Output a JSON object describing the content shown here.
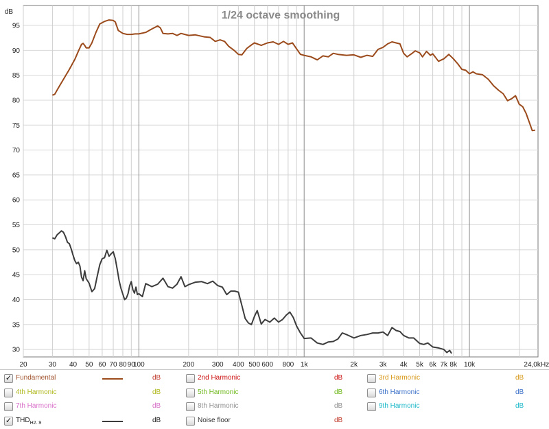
{
  "chart_data": {
    "type": "line",
    "title": "1/24 octave smoothing",
    "ylabel": "dB",
    "xunit": "Hz",
    "xscale": "log",
    "xlim": [
      20,
      26000
    ],
    "ylim": [
      28.5,
      99
    ],
    "grid": true,
    "yticks": [
      30,
      35,
      40,
      45,
      50,
      55,
      60,
      65,
      70,
      75,
      80,
      85,
      90,
      95
    ],
    "xticks": [
      {
        "v": 20,
        "label": "20"
      },
      {
        "v": 30,
        "label": "30"
      },
      {
        "v": 40,
        "label": "40"
      },
      {
        "v": 50,
        "label": "50"
      },
      {
        "v": 60,
        "label": "60"
      },
      {
        "v": 70,
        "label": "70"
      },
      {
        "v": 80,
        "label": "80"
      },
      {
        "v": 90,
        "label": "90"
      },
      {
        "v": 100,
        "label": "100"
      },
      {
        "v": 200,
        "label": "200"
      },
      {
        "v": 300,
        "label": "300"
      },
      {
        "v": 400,
        "label": "400"
      },
      {
        "v": 500,
        "label": "500"
      },
      {
        "v": 600,
        "label": "600"
      },
      {
        "v": 800,
        "label": "800"
      },
      {
        "v": 1000,
        "label": "1k"
      },
      {
        "v": 2000,
        "label": "2k"
      },
      {
        "v": 3000,
        "label": "3k"
      },
      {
        "v": 4000,
        "label": "4k"
      },
      {
        "v": 5000,
        "label": "5k"
      },
      {
        "v": 6000,
        "label": "6k"
      },
      {
        "v": 7000,
        "label": "7k"
      },
      {
        "v": 8000,
        "label": "8k"
      },
      {
        "v": 10000,
        "label": "10k"
      },
      {
        "v": 24000,
        "label": "24,0k"
      }
    ],
    "xgrid_minor": [
      20,
      30,
      40,
      50,
      60,
      70,
      80,
      90,
      200,
      300,
      400,
      500,
      600,
      700,
      800,
      900,
      2000,
      3000,
      4000,
      5000,
      6000,
      7000,
      8000,
      9000,
      20000
    ],
    "xgrid_major": [
      100,
      1000,
      10000
    ],
    "series": [
      {
        "name": "Fundamental",
        "color": "#9b4a1b",
        "points": [
          [
            30,
            81.0
          ],
          [
            31,
            81.2
          ],
          [
            33,
            82.8
          ],
          [
            35,
            84.2
          ],
          [
            38,
            86.2
          ],
          [
            41,
            88.2
          ],
          [
            43,
            89.8
          ],
          [
            45,
            91.2
          ],
          [
            46,
            91.4
          ],
          [
            47,
            91.0
          ],
          [
            48,
            90.5
          ],
          [
            50,
            90.5
          ],
          [
            52,
            91.5
          ],
          [
            55,
            93.6
          ],
          [
            58,
            95.3
          ],
          [
            62,
            95.8
          ],
          [
            66,
            96.1
          ],
          [
            70,
            96.0
          ],
          [
            72,
            95.7
          ],
          [
            75,
            94.0
          ],
          [
            80,
            93.4
          ],
          [
            85,
            93.2
          ],
          [
            90,
            93.2
          ],
          [
            95,
            93.3
          ],
          [
            100,
            93.3
          ],
          [
            110,
            93.6
          ],
          [
            120,
            94.3
          ],
          [
            130,
            94.9
          ],
          [
            135,
            94.5
          ],
          [
            140,
            93.4
          ],
          [
            150,
            93.3
          ],
          [
            160,
            93.4
          ],
          [
            170,
            93.0
          ],
          [
            180,
            93.4
          ],
          [
            200,
            93.0
          ],
          [
            220,
            93.1
          ],
          [
            250,
            92.7
          ],
          [
            270,
            92.6
          ],
          [
            290,
            91.8
          ],
          [
            310,
            92.1
          ],
          [
            330,
            91.8
          ],
          [
            350,
            90.8
          ],
          [
            380,
            89.9
          ],
          [
            400,
            89.2
          ],
          [
            420,
            89.1
          ],
          [
            450,
            90.4
          ],
          [
            480,
            91.1
          ],
          [
            500,
            91.5
          ],
          [
            550,
            91.0
          ],
          [
            600,
            91.5
          ],
          [
            650,
            91.7
          ],
          [
            700,
            91.2
          ],
          [
            750,
            91.8
          ],
          [
            800,
            91.2
          ],
          [
            850,
            91.5
          ],
          [
            900,
            90.3
          ],
          [
            950,
            89.2
          ],
          [
            1000,
            89.0
          ],
          [
            1100,
            88.7
          ],
          [
            1200,
            88.1
          ],
          [
            1300,
            88.9
          ],
          [
            1400,
            88.7
          ],
          [
            1500,
            89.4
          ],
          [
            1600,
            89.2
          ],
          [
            1800,
            89.0
          ],
          [
            2000,
            89.1
          ],
          [
            2200,
            88.6
          ],
          [
            2400,
            89.0
          ],
          [
            2600,
            88.8
          ],
          [
            2800,
            90.2
          ],
          [
            3000,
            90.6
          ],
          [
            3200,
            91.3
          ],
          [
            3400,
            91.7
          ],
          [
            3600,
            91.5
          ],
          [
            3800,
            91.3
          ],
          [
            4000,
            89.4
          ],
          [
            4200,
            88.7
          ],
          [
            4500,
            89.4
          ],
          [
            4700,
            89.9
          ],
          [
            5000,
            89.5
          ],
          [
            5200,
            88.7
          ],
          [
            5500,
            89.8
          ],
          [
            5800,
            89.0
          ],
          [
            6000,
            89.3
          ],
          [
            6500,
            87.8
          ],
          [
            7000,
            88.3
          ],
          [
            7500,
            89.2
          ],
          [
            8000,
            88.3
          ],
          [
            8500,
            87.3
          ],
          [
            9000,
            86.2
          ],
          [
            9500,
            86.0
          ],
          [
            10000,
            85.3
          ],
          [
            10500,
            85.7
          ],
          [
            11000,
            85.3
          ],
          [
            12000,
            85.1
          ],
          [
            13000,
            84.2
          ],
          [
            14000,
            82.9
          ],
          [
            15000,
            82.0
          ],
          [
            16000,
            81.3
          ],
          [
            17000,
            79.9
          ],
          [
            18000,
            80.3
          ],
          [
            19000,
            80.9
          ],
          [
            20000,
            79.2
          ],
          [
            21000,
            78.7
          ],
          [
            22000,
            77.4
          ],
          [
            23000,
            75.6
          ],
          [
            24000,
            73.9
          ],
          [
            25000,
            74.0
          ]
        ]
      },
      {
        "name": "THD",
        "color": "#3c3c3c",
        "points": [
          [
            30,
            52.4
          ],
          [
            31,
            52.2
          ],
          [
            32,
            53.0
          ],
          [
            33,
            53.4
          ],
          [
            34,
            53.8
          ],
          [
            35,
            53.5
          ],
          [
            36,
            52.6
          ],
          [
            37,
            51.5
          ],
          [
            38,
            51.2
          ],
          [
            39,
            50.1
          ],
          [
            40,
            48.9
          ],
          [
            41,
            47.8
          ],
          [
            42,
            47.2
          ],
          [
            43,
            47.5
          ],
          [
            44,
            46.7
          ],
          [
            45,
            44.5
          ],
          [
            46,
            43.8
          ],
          [
            47,
            45.8
          ],
          [
            48,
            44.2
          ],
          [
            50,
            43.3
          ],
          [
            52,
            41.6
          ],
          [
            54,
            42.2
          ],
          [
            56,
            44.7
          ],
          [
            58,
            47.0
          ],
          [
            60,
            48.2
          ],
          [
            62,
            48.4
          ],
          [
            64,
            49.9
          ],
          [
            66,
            48.7
          ],
          [
            68,
            49.2
          ],
          [
            70,
            49.6
          ],
          [
            72,
            48.2
          ],
          [
            74,
            46.0
          ],
          [
            76,
            43.8
          ],
          [
            78,
            42.2
          ],
          [
            80,
            41.1
          ],
          [
            82,
            40.0
          ],
          [
            84,
            40.3
          ],
          [
            86,
            41.2
          ],
          [
            88,
            42.8
          ],
          [
            90,
            43.6
          ],
          [
            92,
            42.0
          ],
          [
            94,
            41.3
          ],
          [
            96,
            42.5
          ],
          [
            98,
            41.0
          ],
          [
            100,
            41.2
          ],
          [
            105,
            40.6
          ],
          [
            110,
            43.2
          ],
          [
            120,
            42.6
          ],
          [
            130,
            43.1
          ],
          [
            140,
            44.3
          ],
          [
            150,
            42.6
          ],
          [
            160,
            42.3
          ],
          [
            170,
            43.1
          ],
          [
            180,
            44.6
          ],
          [
            190,
            42.6
          ],
          [
            200,
            43.0
          ],
          [
            220,
            43.5
          ],
          [
            240,
            43.6
          ],
          [
            260,
            43.2
          ],
          [
            280,
            43.7
          ],
          [
            300,
            42.8
          ],
          [
            320,
            42.5
          ],
          [
            340,
            41.0
          ],
          [
            360,
            41.7
          ],
          [
            380,
            41.7
          ],
          [
            400,
            41.5
          ],
          [
            420,
            38.8
          ],
          [
            440,
            36.2
          ],
          [
            460,
            35.3
          ],
          [
            480,
            35.0
          ],
          [
            500,
            36.6
          ],
          [
            520,
            37.8
          ],
          [
            550,
            35.1
          ],
          [
            580,
            36.0
          ],
          [
            620,
            35.5
          ],
          [
            660,
            36.3
          ],
          [
            700,
            35.5
          ],
          [
            740,
            36.0
          ],
          [
            780,
            36.9
          ],
          [
            820,
            37.5
          ],
          [
            860,
            36.4
          ],
          [
            900,
            34.7
          ],
          [
            950,
            33.3
          ],
          [
            1000,
            32.2
          ],
          [
            1100,
            32.3
          ],
          [
            1200,
            31.3
          ],
          [
            1300,
            31.0
          ],
          [
            1400,
            31.5
          ],
          [
            1500,
            31.6
          ],
          [
            1600,
            32.1
          ],
          [
            1700,
            33.3
          ],
          [
            1800,
            33.0
          ],
          [
            2000,
            32.3
          ],
          [
            2200,
            32.8
          ],
          [
            2400,
            33.0
          ],
          [
            2600,
            33.3
          ],
          [
            2800,
            33.3
          ],
          [
            3000,
            33.5
          ],
          [
            3200,
            32.8
          ],
          [
            3400,
            34.4
          ],
          [
            3600,
            33.8
          ],
          [
            3800,
            33.6
          ],
          [
            4000,
            32.8
          ],
          [
            4300,
            32.3
          ],
          [
            4600,
            32.3
          ],
          [
            5000,
            31.2
          ],
          [
            5300,
            31.0
          ],
          [
            5600,
            31.3
          ],
          [
            6000,
            30.5
          ],
          [
            6500,
            30.3
          ],
          [
            7000,
            30.0
          ],
          [
            7300,
            29.4
          ],
          [
            7600,
            29.8
          ],
          [
            7800,
            29.2
          ]
        ]
      }
    ]
  },
  "legend": {
    "rows": [
      [
        {
          "label": "Fundamental",
          "checked": true,
          "color": "#a0522d",
          "line": "#9b4a1b",
          "unit": "dB",
          "unit_color": "#c0392b"
        },
        {
          "label": "2nd Harmonic",
          "checked": false,
          "color": "#cc1111",
          "line": "",
          "unit": "dB",
          "unit_color": "#cc1111"
        },
        {
          "label": "3rd Harmonic",
          "checked": false,
          "color": "#d89a1c",
          "line": "",
          "unit": "dB",
          "unit_color": "#d89a1c"
        }
      ],
      [
        {
          "label": "4th Harmonic",
          "checked": false,
          "color": "#b0b81c",
          "line": "",
          "unit": "dB",
          "unit_color": "#b0b81c"
        },
        {
          "label": "5th Harmonic",
          "checked": false,
          "color": "#6fb81c",
          "line": "",
          "unit": "dB",
          "unit_color": "#6fb81c"
        },
        {
          "label": "6th Harmonic",
          "checked": false,
          "color": "#3a6fc8",
          "line": "",
          "unit": "dB",
          "unit_color": "#3a6fc8"
        }
      ],
      [
        {
          "label": "7th Harmonic",
          "checked": false,
          "color": "#d86fc8",
          "line": "",
          "unit": "dB",
          "unit_color": "#d86fc8"
        },
        {
          "label": "8th Harmonic",
          "checked": false,
          "color": "#909090",
          "line": "",
          "unit": "dB",
          "unit_color": "#909090"
        },
        {
          "label": "9th Harmonic",
          "checked": false,
          "color": "#1cb8c8",
          "line": "",
          "unit": "dB",
          "unit_color": "#1cb8c8"
        }
      ],
      [
        {
          "label": "THD",
          "sub": "H2..9",
          "checked": true,
          "color": "#222222",
          "line": "#3c3c3c",
          "unit": "dB",
          "unit_color": "#222222"
        },
        {
          "label": "Noise floor",
          "checked": false,
          "color": "#333333",
          "line": "",
          "unit": "dB",
          "unit_color": "#c0392b"
        }
      ]
    ]
  }
}
